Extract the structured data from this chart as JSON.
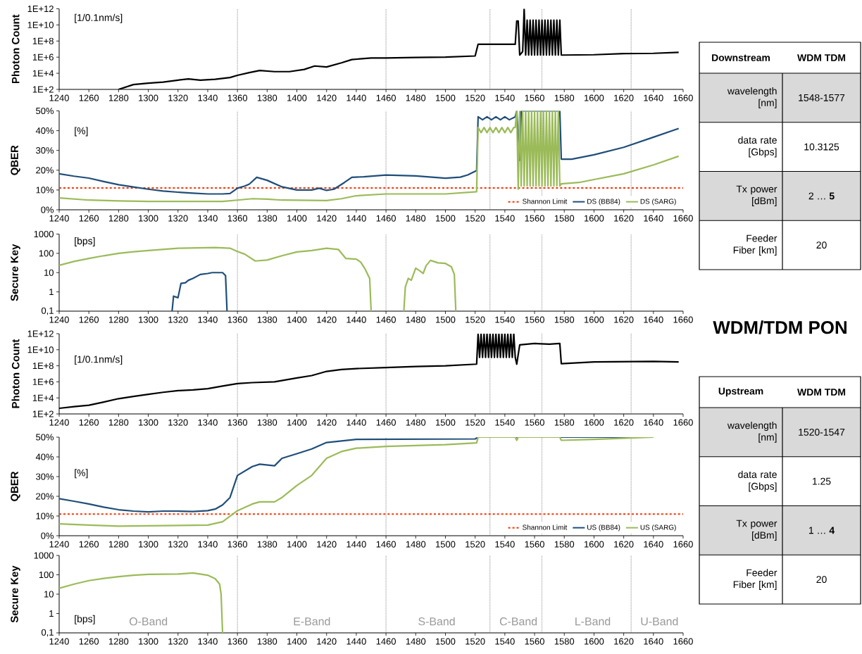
{
  "chart_data": [
    {
      "type": "line",
      "ylabel": "Photon Count",
      "annotations": [
        "[1/0.1nm/s]"
      ],
      "log": "y",
      "xlim": [
        1240,
        1660
      ],
      "xticks": [
        1240,
        1260,
        1280,
        1300,
        1320,
        1340,
        1360,
        1380,
        1400,
        1420,
        1440,
        1460,
        1480,
        1500,
        1520,
        1540,
        1560,
        1580,
        1600,
        1620,
        1640,
        1660
      ],
      "ylim": [
        100.0,
        1000000000000.0
      ],
      "yticks": [
        {
          "value": 100.0,
          "label": "1E+2"
        },
        {
          "value": 10000.0,
          "label": "1E+4"
        },
        {
          "value": 1000000.0,
          "label": "1E+6"
        },
        {
          "value": 100000000.0,
          "label": "1E+8"
        },
        {
          "value": 10000000000.0,
          "label": "1E+10"
        },
        {
          "value": 1000000000000.0,
          "label": "1E+12"
        }
      ],
      "ref_lines": [
        {
          "axis": "x",
          "value": 1360,
          "color": "#595959",
          "line_style": "dotted"
        },
        {
          "axis": "x",
          "value": 1460,
          "color": "#595959",
          "line_style": "dotted"
        },
        {
          "axis": "x",
          "value": 1530,
          "color": "#595959",
          "line_style": "dotted"
        },
        {
          "axis": "x",
          "value": 1565,
          "color": "#595959",
          "line_style": "dotted"
        },
        {
          "axis": "x",
          "value": 1625,
          "color": "#595959",
          "line_style": "dotted"
        }
      ],
      "series": [
        {
          "color": "#000000",
          "x": [
            1280,
            1290,
            1300,
            1310,
            1320,
            1327,
            1335,
            1345,
            1355,
            1360,
            1368,
            1375,
            1385,
            1395,
            1405,
            1412,
            1420,
            1430,
            1437,
            1450,
            1460,
            1480,
            1500,
            1520,
            1522,
            1535,
            1547,
            1548,
            1549,
            1550,
            1552,
            1553,
            1554,
            1555,
            1556,
            1557,
            1558,
            1559,
            1560,
            1561,
            1562,
            1563,
            1564,
            1565,
            1566,
            1567,
            1568,
            1569,
            1570,
            1571,
            1572,
            1573,
            1574,
            1575,
            1576,
            1577,
            1578,
            1600,
            1620,
            1640,
            1657
          ],
          "values": [
            100.0,
            400.0,
            600.0,
            800.0,
            1400.0,
            2000.0,
            1400.0,
            1800.0,
            3000.0,
            5600.0,
            12000.0,
            22000.0,
            16000.0,
            16000.0,
            30000.0,
            80000.0,
            60000.0,
            200000.0,
            500000.0,
            800000.0,
            800000.0,
            900000.0,
            1000000.0,
            1400000.0,
            40000000.0,
            40000000.0,
            40000000.0,
            30000000000.0,
            30000000000.0,
            1800000.0,
            5000000.0,
            1000000000000.0,
            1800000.0,
            40000000000.0,
            1800000.0,
            40000000000.0,
            1800000.0,
            40000000000.0,
            1800000.0,
            40000000000.0,
            1800000.0,
            40000000000.0,
            1800000.0,
            40000000000.0,
            1800000.0,
            40000000000.0,
            1800000.0,
            40000000000.0,
            1800000.0,
            40000000000.0,
            1800000.0,
            40000000000.0,
            1800000.0,
            40000000000.0,
            1800000.0,
            40000000000.0,
            1800000.0,
            2000000.0,
            2800000.0,
            3000000.0,
            4000000.0
          ]
        }
      ]
    },
    {
      "type": "line",
      "ylabel": "QBER",
      "annotations": [
        "[%]"
      ],
      "legend": "bottom right",
      "xlim": [
        1240,
        1660
      ],
      "xticks": [
        1240,
        1260,
        1280,
        1300,
        1320,
        1340,
        1360,
        1380,
        1400,
        1420,
        1440,
        1460,
        1480,
        1500,
        1520,
        1540,
        1560,
        1580,
        1600,
        1620,
        1640,
        1660
      ],
      "ylim": [
        0,
        50
      ],
      "yticks": [
        {
          "value": 0,
          "label": "0%"
        },
        {
          "value": 10,
          "label": "10%"
        },
        {
          "value": 20,
          "label": "20%"
        },
        {
          "value": 30,
          "label": "30%"
        },
        {
          "value": 40,
          "label": "40%"
        },
        {
          "value": 50,
          "label": "50%"
        }
      ],
      "ref_lines": [
        {
          "axis": "y",
          "value": 11,
          "label": "Shannon Limit",
          "color": "#ff3300",
          "line_style": "dashed"
        },
        {
          "axis": "x",
          "value": 1360,
          "color": "#595959",
          "line_style": "dotted"
        },
        {
          "axis": "x",
          "value": 1460,
          "color": "#595959",
          "line_style": "dotted"
        },
        {
          "axis": "x",
          "value": 1530,
          "color": "#595959",
          "line_style": "dotted"
        },
        {
          "axis": "x",
          "value": 1565,
          "color": "#595959",
          "line_style": "dotted"
        },
        {
          "axis": "x",
          "value": 1625,
          "color": "#595959",
          "line_style": "dotted"
        }
      ],
      "series": [
        {
          "name": "DS (BB84)",
          "color": "#1f4e79",
          "x": [
            1240,
            1250,
            1260,
            1270,
            1280,
            1290,
            1300,
            1310,
            1320,
            1330,
            1340,
            1350,
            1355,
            1360,
            1365,
            1368,
            1373,
            1380,
            1390,
            1400,
            1410,
            1415,
            1420,
            1425,
            1432,
            1437,
            1445,
            1460,
            1480,
            1500,
            1510,
            1515,
            1521,
            1522,
            1525,
            1528,
            1531,
            1534,
            1537,
            1540,
            1543,
            1547,
            1548,
            1550,
            1551,
            1577,
            1578,
            1585,
            1600,
            1620,
            1640,
            1657
          ],
          "values": [
            18.2,
            17,
            16,
            14.3,
            12.7,
            11.5,
            10.4,
            9.5,
            8.9,
            8.4,
            8,
            8,
            8.2,
            10.9,
            12,
            13,
            16.4,
            14.9,
            11.6,
            10,
            10,
            10.9,
            9.8,
            10.4,
            13.8,
            16.4,
            16.7,
            17.6,
            17.1,
            16,
            16.5,
            17.6,
            19.8,
            47,
            45.5,
            47,
            45.5,
            47,
            45.5,
            47,
            45.5,
            47,
            50,
            24.9,
            50,
            50,
            25.6,
            25.6,
            27.8,
            31.6,
            36.7,
            41.1
          ]
        },
        {
          "name": "DS (SARG)",
          "color": "#9bbb59",
          "x": [
            1240,
            1260,
            1280,
            1300,
            1350,
            1360,
            1370,
            1380,
            1390,
            1420,
            1430,
            1440,
            1460,
            1500,
            1521,
            1522,
            1524,
            1526,
            1528,
            1530,
            1532,
            1534,
            1536,
            1538,
            1540,
            1542,
            1544,
            1546,
            1547,
            1548,
            1549,
            1550,
            1551,
            1552,
            1553,
            1554,
            1555,
            1556,
            1557,
            1558,
            1559,
            1560,
            1561,
            1562,
            1563,
            1564,
            1565,
            1566,
            1567,
            1568,
            1569,
            1570,
            1571,
            1572,
            1573,
            1574,
            1575,
            1576,
            1577,
            1578,
            1590,
            1600,
            1620,
            1640,
            1657
          ],
          "values": [
            6,
            4.9,
            4.5,
            4.2,
            4.2,
            4.9,
            5.6,
            5.4,
            4.9,
            4.7,
            5.6,
            7.1,
            8,
            8,
            9.1,
            41.6,
            39,
            41.6,
            39,
            41.6,
            39,
            41.6,
            39,
            41.6,
            39,
            41.6,
            39,
            41.6,
            41.6,
            50,
            10.4,
            50,
            12,
            50,
            12,
            50,
            12,
            50,
            12,
            50,
            12,
            50,
            12,
            50,
            12,
            50,
            12,
            50,
            12,
            50,
            12,
            50,
            12,
            50,
            12,
            50,
            12,
            50,
            12,
            13.1,
            13.8,
            15.3,
            18.2,
            22.7,
            27.1
          ]
        }
      ]
    },
    {
      "type": "line",
      "ylabel": "Secure Key",
      "annotations": [
        "[bps]"
      ],
      "log": "y",
      "xlim": [
        1240,
        1660
      ],
      "xticks": [
        1240,
        1260,
        1280,
        1300,
        1320,
        1340,
        1360,
        1380,
        1400,
        1420,
        1440,
        1460,
        1480,
        1500,
        1520,
        1540,
        1560,
        1580,
        1600,
        1620,
        1640,
        1660
      ],
      "ylim": [
        0.1,
        1000
      ],
      "yticks": [
        {
          "value": 0.1,
          "label": "0,1"
        },
        1,
        10,
        100,
        1000
      ],
      "ref_lines": [
        {
          "axis": "x",
          "value": 1360,
          "color": "#595959",
          "line_style": "dotted"
        },
        {
          "axis": "x",
          "value": 1460,
          "color": "#595959",
          "line_style": "dotted"
        },
        {
          "axis": "x",
          "value": 1530,
          "color": "#595959",
          "line_style": "dotted"
        },
        {
          "axis": "x",
          "value": 1565,
          "color": "#595959",
          "line_style": "dotted"
        },
        {
          "axis": "x",
          "value": 1625,
          "color": "#595959",
          "line_style": "dotted"
        }
      ],
      "series": [
        {
          "color": "#9bbb59",
          "x": [
            1240,
            1250,
            1260,
            1270,
            1280,
            1290,
            1300,
            1320,
            1345,
            1355,
            1360,
            1365,
            1372,
            1380,
            1390,
            1400,
            1410,
            1420,
            1428,
            1433,
            1440,
            1443,
            1446,
            1449,
            1450,
            1460,
            1472,
            1473,
            1475,
            1477,
            1480,
            1483,
            1485,
            1487,
            1490,
            1495,
            1500,
            1504,
            1506,
            1507
          ],
          "values": [
            24,
            38,
            54,
            75,
            100,
            120,
            140,
            185,
            200,
            185,
            125,
            90,
            40,
            45,
            75,
            118,
            140,
            185,
            158,
            54,
            50,
            35,
            15,
            5,
            0.1,
            null,
            0.1,
            1.8,
            5,
            4,
            17,
            12,
            9,
            23,
            43,
            32,
            30,
            20,
            8,
            0.1
          ]
        },
        {
          "color": "#1f4e79",
          "x": [
            1316,
            1317,
            1320,
            1322,
            1325,
            1327,
            1330,
            1335,
            1340,
            1343,
            1350,
            1352,
            1353
          ],
          "values": [
            0.1,
            0.6,
            0.5,
            2.75,
            3,
            4,
            5,
            8,
            9,
            10,
            10,
            7,
            0.1
          ]
        }
      ]
    },
    {
      "type": "line",
      "ylabel": "Photon Count",
      "annotations": [
        "[1/0.1nm/s]"
      ],
      "log": "y",
      "xlim": [
        1240,
        1660
      ],
      "xticks": [
        1240,
        1260,
        1280,
        1300,
        1320,
        1340,
        1360,
        1380,
        1400,
        1420,
        1440,
        1460,
        1480,
        1500,
        1520,
        1540,
        1560,
        1580,
        1600,
        1620,
        1640,
        1660
      ],
      "ylim": [
        100.0,
        1000000000000.0
      ],
      "yticks": [
        {
          "value": 100.0,
          "label": "1E+2"
        },
        {
          "value": 10000.0,
          "label": "1E+4"
        },
        {
          "value": 1000000.0,
          "label": "1E+6"
        },
        {
          "value": 100000000.0,
          "label": "1E+8"
        },
        {
          "value": 10000000000.0,
          "label": "1E+10"
        },
        {
          "value": 1000000000000.0,
          "label": "1E+12"
        }
      ],
      "ref_lines": [
        {
          "axis": "x",
          "value": 1360,
          "color": "#595959",
          "line_style": "dotted"
        },
        {
          "axis": "x",
          "value": 1460,
          "color": "#595959",
          "line_style": "dotted"
        },
        {
          "axis": "x",
          "value": 1530,
          "color": "#595959",
          "line_style": "dotted"
        },
        {
          "axis": "x",
          "value": 1565,
          "color": "#595959",
          "line_style": "dotted"
        },
        {
          "axis": "x",
          "value": 1625,
          "color": "#595959",
          "line_style": "dotted"
        }
      ],
      "series": [
        {
          "color": "#000000",
          "x": [
            1240,
            1250,
            1260,
            1270,
            1280,
            1290,
            1300,
            1310,
            1320,
            1330,
            1340,
            1350,
            1360,
            1370,
            1385,
            1400,
            1410,
            1420,
            1430,
            1440,
            1460,
            1480,
            1500,
            1521,
            1522,
            1523,
            1524,
            1525,
            1526,
            1527,
            1528,
            1529,
            1530,
            1531,
            1532,
            1533,
            1534,
            1535,
            1536,
            1537,
            1538,
            1539,
            1540,
            1541,
            1542,
            1543,
            1544,
            1545,
            1546,
            1547,
            1548,
            1550,
            1560,
            1570,
            1577,
            1578,
            1600,
            1640,
            1657
          ],
          "values": [
            500.0,
            800.0,
            1200.0,
            3000.0,
            8000.0,
            15000.0,
            28000.0,
            50000.0,
            80000.0,
            100000.0,
            140000.0,
            300000.0,
            600000.0,
            800000.0,
            1000000.0,
            3000000.0,
            6000000.0,
            20000000.0,
            35000000.0,
            45000000.0,
            60000000.0,
            80000000.0,
            100000000.0,
            160000000.0,
            1000000000000.0,
            1100000000.0,
            1000000000000.0,
            1100000000.0,
            1000000000000.0,
            1100000000.0,
            1000000000000.0,
            1100000000.0,
            1000000000000.0,
            1100000000.0,
            1000000000000.0,
            1100000000.0,
            1000000000000.0,
            1100000000.0,
            1000000000000.0,
            1100000000.0,
            1000000000000.0,
            1100000000.0,
            1000000000000.0,
            1100000000.0,
            1000000000000.0,
            1100000000.0,
            1000000000000.0,
            1100000000.0,
            1000000000000.0,
            1100000000.0,
            160000000.0,
            40000000000.0,
            60000000000.0,
            50000000000.0,
            60000000000.0,
            180000000.0,
            300000000.0,
            350000000.0,
            300000000.0
          ]
        }
      ]
    },
    {
      "type": "line",
      "ylabel": "QBER",
      "annotations": [
        "[%]"
      ],
      "legend": "bottom right",
      "xlim": [
        1240,
        1660
      ],
      "xticks": [
        1240,
        1260,
        1280,
        1300,
        1320,
        1340,
        1360,
        1380,
        1400,
        1420,
        1440,
        1460,
        1480,
        1500,
        1520,
        1540,
        1560,
        1580,
        1600,
        1620,
        1640,
        1660
      ],
      "ylim": [
        0,
        50
      ],
      "yticks": [
        {
          "value": 0,
          "label": "0%"
        },
        {
          "value": 10,
          "label": "10%"
        },
        {
          "value": 20,
          "label": "20%"
        },
        {
          "value": 30,
          "label": "30%"
        },
        {
          "value": 40,
          "label": "40%"
        },
        {
          "value": 50,
          "label": "50%"
        }
      ],
      "ref_lines": [
        {
          "axis": "y",
          "value": 11,
          "label": "Shannon Limit",
          "color": "#ff3300",
          "line_style": "dashed"
        },
        {
          "axis": "x",
          "value": 1360,
          "color": "#595959",
          "line_style": "dotted"
        },
        {
          "axis": "x",
          "value": 1460,
          "color": "#595959",
          "line_style": "dotted"
        },
        {
          "axis": "x",
          "value": 1530,
          "color": "#595959",
          "line_style": "dotted"
        },
        {
          "axis": "x",
          "value": 1565,
          "color": "#595959",
          "line_style": "dotted"
        },
        {
          "axis": "x",
          "value": 1625,
          "color": "#595959",
          "line_style": "dotted"
        }
      ],
      "series": [
        {
          "name": "US (BB84)",
          "color": "#1f4e79",
          "x": [
            1240,
            1250,
            1260,
            1270,
            1280,
            1290,
            1300,
            1310,
            1320,
            1330,
            1340,
            1345,
            1350,
            1355,
            1360,
            1370,
            1375,
            1385,
            1390,
            1400,
            1410,
            1420,
            1440,
            1520,
            1522,
            1640
          ],
          "values": [
            18.8,
            17.5,
            16.1,
            14.5,
            13.2,
            12.5,
            12.1,
            12.5,
            12.5,
            12.3,
            12.7,
            13.5,
            15.6,
            19.4,
            30.6,
            35.1,
            36.3,
            35.5,
            39.3,
            41.6,
            44,
            47.3,
            48.9,
            49.1,
            50,
            50
          ]
        },
        {
          "name": "US (SARG)",
          "color": "#9bbb59",
          "x": [
            1240,
            1260,
            1280,
            1340,
            1350,
            1360,
            1370,
            1375,
            1385,
            1390,
            1400,
            1410,
            1420,
            1430,
            1440,
            1460,
            1500,
            1521,
            1522,
            1547,
            1548,
            1549,
            1577,
            1578,
            1600,
            1640
          ],
          "values": [
            6,
            5.4,
            4.9,
            5.4,
            7.1,
            12.7,
            16.1,
            17.2,
            17.2,
            19.4,
            25.5,
            30.6,
            39.3,
            42.7,
            44.4,
            45.3,
            46.2,
            47.1,
            50,
            50,
            48.4,
            50,
            50,
            48.4,
            48.9,
            50
          ]
        }
      ]
    },
    {
      "type": "line",
      "ylabel": "Secure Key",
      "annotations": [
        "[bps]",
        "O-Band",
        "E-Band",
        "S-Band",
        "C-Band",
        "L-Band",
        "U-Band"
      ],
      "log": "y",
      "xlim": [
        1240,
        1660
      ],
      "xticks": [
        1240,
        1260,
        1280,
        1300,
        1320,
        1340,
        1360,
        1380,
        1400,
        1420,
        1440,
        1460,
        1480,
        1500,
        1520,
        1540,
        1560,
        1580,
        1600,
        1620,
        1640,
        1660
      ],
      "ylim": [
        0.1,
        1000
      ],
      "yticks": [
        {
          "value": 0.1,
          "label": "0,1"
        },
        1,
        10,
        100,
        1000
      ],
      "ref_lines": [
        {
          "axis": "x",
          "value": 1360,
          "color": "#595959",
          "line_style": "dotted"
        },
        {
          "axis": "x",
          "value": 1460,
          "color": "#595959",
          "line_style": "dotted"
        },
        {
          "axis": "x",
          "value": 1530,
          "color": "#595959",
          "line_style": "dotted"
        },
        {
          "axis": "x",
          "value": 1565,
          "color": "#595959",
          "line_style": "dotted"
        },
        {
          "axis": "x",
          "value": 1625,
          "color": "#595959",
          "line_style": "dotted"
        }
      ],
      "series": [
        {
          "color": "#9bbb59",
          "x": [
            1240,
            1250,
            1260,
            1270,
            1280,
            1290,
            1300,
            1320,
            1330,
            1340,
            1345,
            1348,
            1349,
            1350
          ],
          "values": [
            20,
            33,
            50,
            65,
            80,
            95,
            105,
            110,
            125,
            95,
            63,
            33,
            10,
            0.1
          ]
        }
      ]
    },
    {
      "type": "other",
      "annotations": [
        "Downstream",
        "WDM TDM",
        "wavelength [nm]",
        "1548-1577",
        "data rate [Gbps]",
        "10.3125",
        "Tx power [dBm]",
        "2 … **5**",
        "Feeder Fiber [km]",
        "20"
      ]
    },
    {
      "type": "other",
      "title": "WDM/TDM PON"
    },
    {
      "type": "other",
      "annotations": [
        "Upstream",
        "WDM TDM",
        "wavelength [nm]",
        "1520-1547",
        "data rate [Gbps]",
        "1.25",
        "Tx power [dBm]",
        "1 … **4**",
        "Feeder Fiber [km]",
        "20"
      ]
    }
  ]
}
